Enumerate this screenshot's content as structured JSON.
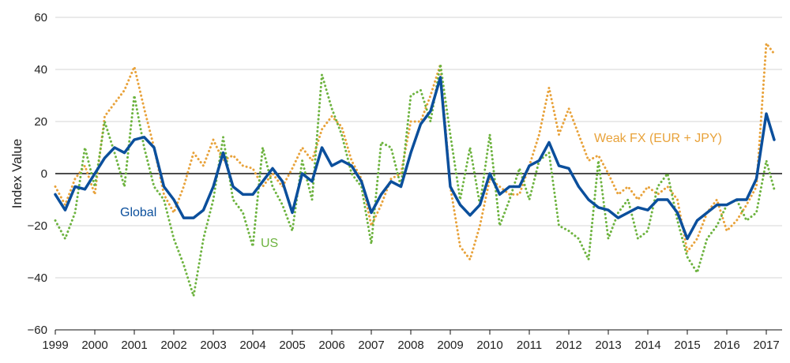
{
  "chart_data": {
    "type": "line",
    "title": "",
    "xlabel": "",
    "ylabel": "Index Value",
    "ylim": [
      -60,
      60
    ],
    "xlim": [
      1999.0,
      2017.4
    ],
    "y_ticks": [
      "60",
      "40",
      "20",
      "0",
      "-20",
      "-40",
      "-60"
    ],
    "x_ticks": [
      "1999",
      "2000",
      "2001",
      "2002",
      "2003",
      "2004",
      "2005",
      "2006",
      "2007",
      "2008",
      "2009",
      "2010",
      "2011",
      "2012",
      "2013",
      "2014",
      "2015",
      "2016",
      "2017"
    ],
    "grid": true,
    "legend": "inline labels",
    "series": [
      {
        "name": "Global",
        "color": "#0b4f9c",
        "style": "solid",
        "points": [
          [
            1999.0,
            -8
          ],
          [
            1999.25,
            -14
          ],
          [
            1999.5,
            -5
          ],
          [
            1999.75,
            -6
          ],
          [
            2000.0,
            0
          ],
          [
            2000.25,
            6
          ],
          [
            2000.5,
            10
          ],
          [
            2000.75,
            8
          ],
          [
            2001.0,
            13
          ],
          [
            2001.25,
            14
          ],
          [
            2001.5,
            10
          ],
          [
            2001.75,
            -5
          ],
          [
            2002.0,
            -10
          ],
          [
            2002.25,
            -17
          ],
          [
            2002.5,
            -17
          ],
          [
            2002.75,
            -14
          ],
          [
            2003.0,
            -5
          ],
          [
            2003.25,
            8
          ],
          [
            2003.5,
            -5
          ],
          [
            2003.75,
            -8
          ],
          [
            2004.0,
            -8
          ],
          [
            2004.25,
            -3
          ],
          [
            2004.5,
            2
          ],
          [
            2004.75,
            -3
          ],
          [
            2005.0,
            -15
          ],
          [
            2005.25,
            0
          ],
          [
            2005.5,
            -3
          ],
          [
            2005.75,
            10
          ],
          [
            2006.0,
            3
          ],
          [
            2006.25,
            5
          ],
          [
            2006.5,
            3
          ],
          [
            2006.75,
            -3
          ],
          [
            2007.0,
            -15
          ],
          [
            2007.25,
            -8
          ],
          [
            2007.5,
            -3
          ],
          [
            2007.75,
            -5
          ],
          [
            2008.0,
            8
          ],
          [
            2008.25,
            19
          ],
          [
            2008.5,
            24
          ],
          [
            2008.75,
            37
          ],
          [
            2009.0,
            -5
          ],
          [
            2009.25,
            -12
          ],
          [
            2009.5,
            -16
          ],
          [
            2009.75,
            -12
          ],
          [
            2010.0,
            0
          ],
          [
            2010.25,
            -8
          ],
          [
            2010.5,
            -5
          ],
          [
            2010.75,
            -5
          ],
          [
            2011.0,
            3
          ],
          [
            2011.25,
            5
          ],
          [
            2011.5,
            12
          ],
          [
            2011.75,
            3
          ],
          [
            2012.0,
            2
          ],
          [
            2012.25,
            -5
          ],
          [
            2012.5,
            -10
          ],
          [
            2012.75,
            -13
          ],
          [
            2013.0,
            -14
          ],
          [
            2013.25,
            -17
          ],
          [
            2013.5,
            -15
          ],
          [
            2013.75,
            -13
          ],
          [
            2014.0,
            -14
          ],
          [
            2014.25,
            -10
          ],
          [
            2014.5,
            -10
          ],
          [
            2014.75,
            -15
          ],
          [
            2015.0,
            -25
          ],
          [
            2015.25,
            -18
          ],
          [
            2015.5,
            -15
          ],
          [
            2015.75,
            -12
          ],
          [
            2016.0,
            -12
          ],
          [
            2016.25,
            -10
          ],
          [
            2016.5,
            -10
          ],
          [
            2016.75,
            -2
          ],
          [
            2017.0,
            23
          ],
          [
            2017.2,
            13
          ]
        ]
      },
      {
        "name": "Weak FX (EUR + JPY)",
        "color": "#e8a23a",
        "style": "dotted",
        "points": [
          [
            1999.0,
            -5
          ],
          [
            1999.25,
            -12
          ],
          [
            1999.5,
            -2
          ],
          [
            1999.75,
            3
          ],
          [
            2000.0,
            -8
          ],
          [
            2000.25,
            22
          ],
          [
            2000.5,
            27
          ],
          [
            2000.75,
            32
          ],
          [
            2001.0,
            41
          ],
          [
            2001.25,
            25
          ],
          [
            2001.5,
            10
          ],
          [
            2001.75,
            -8
          ],
          [
            2002.0,
            -15
          ],
          [
            2002.25,
            -5
          ],
          [
            2002.5,
            8
          ],
          [
            2002.75,
            3
          ],
          [
            2003.0,
            13
          ],
          [
            2003.25,
            5
          ],
          [
            2003.5,
            7
          ],
          [
            2003.75,
            3
          ],
          [
            2004.0,
            2
          ],
          [
            2004.25,
            -5
          ],
          [
            2004.5,
            0
          ],
          [
            2004.75,
            -5
          ],
          [
            2005.0,
            2
          ],
          [
            2005.25,
            10
          ],
          [
            2005.5,
            5
          ],
          [
            2005.75,
            17
          ],
          [
            2006.0,
            22
          ],
          [
            2006.25,
            18
          ],
          [
            2006.5,
            5
          ],
          [
            2006.75,
            -2
          ],
          [
            2007.0,
            -20
          ],
          [
            2007.25,
            -12
          ],
          [
            2007.5,
            -2
          ],
          [
            2007.75,
            0
          ],
          [
            2008.0,
            20
          ],
          [
            2008.25,
            20
          ],
          [
            2008.5,
            30
          ],
          [
            2008.75,
            42
          ],
          [
            2009.0,
            -5
          ],
          [
            2009.25,
            -28
          ],
          [
            2009.5,
            -33
          ],
          [
            2009.75,
            -20
          ],
          [
            2010.0,
            -2
          ],
          [
            2010.25,
            -5
          ],
          [
            2010.5,
            -8
          ],
          [
            2010.75,
            -8
          ],
          [
            2011.0,
            3
          ],
          [
            2011.25,
            15
          ],
          [
            2011.5,
            33
          ],
          [
            2011.75,
            15
          ],
          [
            2012.0,
            25
          ],
          [
            2012.25,
            15
          ],
          [
            2012.5,
            5
          ],
          [
            2012.75,
            7
          ],
          [
            2013.0,
            0
          ],
          [
            2013.25,
            -8
          ],
          [
            2013.5,
            -5
          ],
          [
            2013.75,
            -10
          ],
          [
            2014.0,
            -5
          ],
          [
            2014.25,
            -8
          ],
          [
            2014.5,
            -5
          ],
          [
            2014.75,
            -10
          ],
          [
            2015.0,
            -30
          ],
          [
            2015.25,
            -25
          ],
          [
            2015.5,
            -15
          ],
          [
            2015.75,
            -10
          ],
          [
            2016.0,
            -22
          ],
          [
            2016.25,
            -18
          ],
          [
            2016.5,
            -12
          ],
          [
            2016.75,
            -5
          ],
          [
            2017.0,
            50
          ],
          [
            2017.2,
            46
          ]
        ]
      },
      {
        "name": "US",
        "color": "#6db33f",
        "style": "dotted",
        "points": [
          [
            1999.0,
            -18
          ],
          [
            1999.25,
            -25
          ],
          [
            1999.5,
            -15
          ],
          [
            1999.75,
            10
          ],
          [
            2000.0,
            -5
          ],
          [
            2000.25,
            20
          ],
          [
            2000.5,
            8
          ],
          [
            2000.75,
            -5
          ],
          [
            2001.0,
            30
          ],
          [
            2001.25,
            10
          ],
          [
            2001.5,
            -5
          ],
          [
            2001.75,
            -10
          ],
          [
            2002.0,
            -25
          ],
          [
            2002.25,
            -35
          ],
          [
            2002.5,
            -47
          ],
          [
            2002.75,
            -25
          ],
          [
            2003.0,
            -10
          ],
          [
            2003.25,
            14
          ],
          [
            2003.5,
            -10
          ],
          [
            2003.75,
            -15
          ],
          [
            2004.0,
            -28
          ],
          [
            2004.25,
            10
          ],
          [
            2004.5,
            -5
          ],
          [
            2004.75,
            -12
          ],
          [
            2005.0,
            -22
          ],
          [
            2005.25,
            5
          ],
          [
            2005.5,
            -10
          ],
          [
            2005.75,
            38
          ],
          [
            2006.0,
            25
          ],
          [
            2006.25,
            15
          ],
          [
            2006.5,
            0
          ],
          [
            2006.75,
            -5
          ],
          [
            2007.0,
            -27
          ],
          [
            2007.25,
            12
          ],
          [
            2007.5,
            10
          ],
          [
            2007.75,
            -5
          ],
          [
            2008.0,
            30
          ],
          [
            2008.25,
            32
          ],
          [
            2008.5,
            20
          ],
          [
            2008.75,
            42
          ],
          [
            2009.0,
            15
          ],
          [
            2009.25,
            -10
          ],
          [
            2009.5,
            10
          ],
          [
            2009.75,
            -12
          ],
          [
            2010.0,
            15
          ],
          [
            2010.25,
            -20
          ],
          [
            2010.5,
            -10
          ],
          [
            2010.75,
            2
          ],
          [
            2011.0,
            -10
          ],
          [
            2011.25,
            5
          ],
          [
            2011.5,
            8
          ],
          [
            2011.75,
            -20
          ],
          [
            2012.0,
            -22
          ],
          [
            2012.25,
            -25
          ],
          [
            2012.5,
            -33
          ],
          [
            2012.75,
            5
          ],
          [
            2013.0,
            -25
          ],
          [
            2013.25,
            -15
          ],
          [
            2013.5,
            -10
          ],
          [
            2013.75,
            -25
          ],
          [
            2014.0,
            -22
          ],
          [
            2014.25,
            -5
          ],
          [
            2014.5,
            0
          ],
          [
            2014.75,
            -18
          ],
          [
            2015.0,
            -32
          ],
          [
            2015.25,
            -38
          ],
          [
            2015.5,
            -25
          ],
          [
            2015.75,
            -20
          ],
          [
            2016.0,
            -12
          ],
          [
            2016.25,
            -10
          ],
          [
            2016.5,
            -18
          ],
          [
            2016.75,
            -15
          ],
          [
            2017.0,
            5
          ],
          [
            2017.2,
            -6
          ]
        ]
      }
    ],
    "annotations": [
      {
        "text": "Global",
        "color": "#0b4f9c"
      },
      {
        "text": "US",
        "color": "#6db33f"
      },
      {
        "text": "Weak FX (EUR + JPY)",
        "color": "#e8a23a"
      }
    ]
  }
}
